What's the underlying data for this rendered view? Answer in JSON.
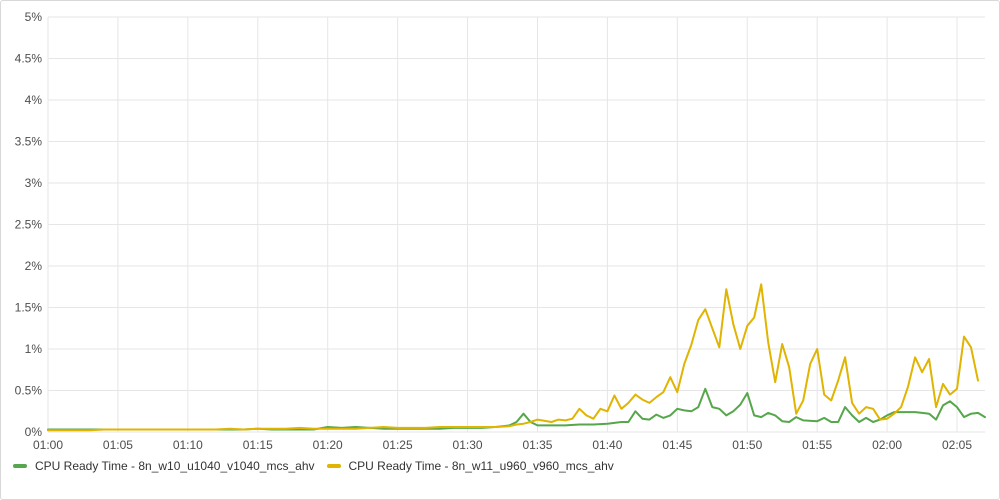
{
  "chart_data": {
    "type": "line",
    "title": "",
    "xlabel": "",
    "ylabel": "",
    "y_unit": "%",
    "ylim": [
      0,
      5
    ],
    "y_ticks": [
      "0%",
      "0.5%",
      "1%",
      "1.5%",
      "2%",
      "2.5%",
      "3%",
      "3.5%",
      "4%",
      "4.5%",
      "5%"
    ],
    "y_tick_values": [
      0,
      0.5,
      1,
      1.5,
      2,
      2.5,
      3,
      3.5,
      4,
      4.5,
      5
    ],
    "xlim": [
      "01:00",
      "02:07"
    ],
    "x_ticks": [
      "01:00",
      "01:05",
      "01:10",
      "01:15",
      "01:20",
      "01:25",
      "01:30",
      "01:35",
      "01:40",
      "01:45",
      "01:50",
      "01:55",
      "02:00",
      "02:05"
    ],
    "grid": true,
    "legend_position": "bottom-left",
    "colors": [
      "#56a64b",
      "#e0b400"
    ],
    "series": [
      {
        "name": "CPU Ready Time - 8n_w10_u1040_v1040_mcs_ahv",
        "points": [
          [
            "01:00",
            0.03
          ],
          [
            "01:01",
            0.03
          ],
          [
            "01:02",
            0.03
          ],
          [
            "01:03",
            0.03
          ],
          [
            "01:04",
            0.03
          ],
          [
            "01:05",
            0.03
          ],
          [
            "01:06",
            0.03
          ],
          [
            "01:07",
            0.03
          ],
          [
            "01:08",
            0.03
          ],
          [
            "01:09",
            0.03
          ],
          [
            "01:10",
            0.03
          ],
          [
            "01:11",
            0.03
          ],
          [
            "01:12",
            0.03
          ],
          [
            "01:13",
            0.03
          ],
          [
            "01:14",
            0.03
          ],
          [
            "01:15",
            0.04
          ],
          [
            "01:16",
            0.03
          ],
          [
            "01:17",
            0.03
          ],
          [
            "01:18",
            0.03
          ],
          [
            "01:19",
            0.03
          ],
          [
            "01:20",
            0.06
          ],
          [
            "01:21",
            0.05
          ],
          [
            "01:22",
            0.06
          ],
          [
            "01:23",
            0.05
          ],
          [
            "01:24",
            0.04
          ],
          [
            "01:25",
            0.04
          ],
          [
            "01:26",
            0.04
          ],
          [
            "01:27",
            0.04
          ],
          [
            "01:28",
            0.04
          ],
          [
            "01:29",
            0.05
          ],
          [
            "01:30",
            0.05
          ],
          [
            "01:31",
            0.05
          ],
          [
            "01:32",
            0.06
          ],
          [
            "01:33",
            0.08
          ],
          [
            "01:33:30",
            0.12
          ],
          [
            "01:34",
            0.22
          ],
          [
            "01:34:30",
            0.12
          ],
          [
            "01:35",
            0.08
          ],
          [
            "01:36",
            0.08
          ],
          [
            "01:37",
            0.08
          ],
          [
            "01:38",
            0.09
          ],
          [
            "01:39",
            0.09
          ],
          [
            "01:40",
            0.1
          ],
          [
            "01:41",
            0.12
          ],
          [
            "01:41:30",
            0.12
          ],
          [
            "01:42",
            0.25
          ],
          [
            "01:42:30",
            0.16
          ],
          [
            "01:43",
            0.15
          ],
          [
            "01:43:30",
            0.21
          ],
          [
            "01:44",
            0.17
          ],
          [
            "01:44:30",
            0.2
          ],
          [
            "01:45",
            0.28
          ],
          [
            "01:45:30",
            0.26
          ],
          [
            "01:46",
            0.25
          ],
          [
            "01:46:30",
            0.3
          ],
          [
            "01:47",
            0.52
          ],
          [
            "01:47:30",
            0.3
          ],
          [
            "01:48",
            0.28
          ],
          [
            "01:48:30",
            0.2
          ],
          [
            "01:49",
            0.25
          ],
          [
            "01:49:30",
            0.33
          ],
          [
            "01:50",
            0.47
          ],
          [
            "01:50:30",
            0.2
          ],
          [
            "01:51",
            0.18
          ],
          [
            "01:51:30",
            0.23
          ],
          [
            "01:52",
            0.2
          ],
          [
            "01:52:30",
            0.13
          ],
          [
            "01:53",
            0.12
          ],
          [
            "01:53:30",
            0.18
          ],
          [
            "01:54",
            0.14
          ],
          [
            "01:55",
            0.13
          ],
          [
            "01:55:30",
            0.17
          ],
          [
            "01:56",
            0.12
          ],
          [
            "01:56:30",
            0.12
          ],
          [
            "01:57",
            0.3
          ],
          [
            "01:57:30",
            0.2
          ],
          [
            "01:58",
            0.12
          ],
          [
            "01:58:30",
            0.17
          ],
          [
            "01:59",
            0.12
          ],
          [
            "01:59:30",
            0.15
          ],
          [
            "02:00",
            0.2
          ],
          [
            "02:00:30",
            0.24
          ],
          [
            "02:01",
            0.24
          ],
          [
            "02:02",
            0.24
          ],
          [
            "02:02:30",
            0.23
          ],
          [
            "02:03",
            0.22
          ],
          [
            "02:03:30",
            0.15
          ],
          [
            "02:04",
            0.32
          ],
          [
            "02:04:30",
            0.37
          ],
          [
            "02:05",
            0.3
          ],
          [
            "02:05:30",
            0.18
          ],
          [
            "02:06",
            0.22
          ],
          [
            "02:06:30",
            0.23
          ],
          [
            "02:07",
            0.18
          ]
        ]
      },
      {
        "name": "CPU Ready Time - 8n_w11_u960_v960_mcs_ahv",
        "points": [
          [
            "01:00",
            0.02
          ],
          [
            "01:01",
            0.02
          ],
          [
            "01:02",
            0.02
          ],
          [
            "01:03",
            0.02
          ],
          [
            "01:04",
            0.03
          ],
          [
            "01:05",
            0.03
          ],
          [
            "01:06",
            0.03
          ],
          [
            "01:07",
            0.03
          ],
          [
            "01:08",
            0.03
          ],
          [
            "01:09",
            0.03
          ],
          [
            "01:10",
            0.03
          ],
          [
            "01:11",
            0.03
          ],
          [
            "01:12",
            0.03
          ],
          [
            "01:13",
            0.04
          ],
          [
            "01:14",
            0.03
          ],
          [
            "01:15",
            0.04
          ],
          [
            "01:16",
            0.04
          ],
          [
            "01:17",
            0.04
          ],
          [
            "01:18",
            0.05
          ],
          [
            "01:19",
            0.04
          ],
          [
            "01:20",
            0.04
          ],
          [
            "01:21",
            0.04
          ],
          [
            "01:22",
            0.04
          ],
          [
            "01:23",
            0.05
          ],
          [
            "01:24",
            0.06
          ],
          [
            "01:25",
            0.05
          ],
          [
            "01:26",
            0.05
          ],
          [
            "01:27",
            0.05
          ],
          [
            "01:28",
            0.06
          ],
          [
            "01:29",
            0.06
          ],
          [
            "01:30",
            0.06
          ],
          [
            "01:31",
            0.06
          ],
          [
            "01:32",
            0.06
          ],
          [
            "01:33",
            0.07
          ],
          [
            "01:33:30",
            0.09
          ],
          [
            "01:34",
            0.1
          ],
          [
            "01:34:30",
            0.12
          ],
          [
            "01:35",
            0.15
          ],
          [
            "01:36",
            0.12
          ],
          [
            "01:36:30",
            0.15
          ],
          [
            "01:37",
            0.14
          ],
          [
            "01:37:30",
            0.16
          ],
          [
            "01:38",
            0.28
          ],
          [
            "01:38:30",
            0.2
          ],
          [
            "01:39",
            0.16
          ],
          [
            "01:39:30",
            0.28
          ],
          [
            "01:40",
            0.25
          ],
          [
            "01:40:30",
            0.44
          ],
          [
            "01:41",
            0.28
          ],
          [
            "01:41:30",
            0.35
          ],
          [
            "01:42",
            0.45
          ],
          [
            "01:42:30",
            0.39
          ],
          [
            "01:43",
            0.35
          ],
          [
            "01:43:30",
            0.42
          ],
          [
            "01:44",
            0.48
          ],
          [
            "01:44:30",
            0.66
          ],
          [
            "01:45",
            0.48
          ],
          [
            "01:45:30",
            0.82
          ],
          [
            "01:46",
            1.05
          ],
          [
            "01:46:30",
            1.35
          ],
          [
            "01:47",
            1.48
          ],
          [
            "01:47:30",
            1.25
          ],
          [
            "01:48",
            1.02
          ],
          [
            "01:48:30",
            1.72
          ],
          [
            "01:49",
            1.3
          ],
          [
            "01:49:30",
            1.0
          ],
          [
            "01:50",
            1.28
          ],
          [
            "01:50:30",
            1.38
          ],
          [
            "01:51",
            1.78
          ],
          [
            "01:51:30",
            1.08
          ],
          [
            "01:52",
            0.6
          ],
          [
            "01:52:30",
            1.06
          ],
          [
            "01:53",
            0.78
          ],
          [
            "01:53:30",
            0.22
          ],
          [
            "01:54",
            0.38
          ],
          [
            "01:54:30",
            0.82
          ],
          [
            "01:55",
            1.0
          ],
          [
            "01:55:30",
            0.45
          ],
          [
            "01:56",
            0.38
          ],
          [
            "01:56:30",
            0.62
          ],
          [
            "01:57",
            0.9
          ],
          [
            "01:57:30",
            0.35
          ],
          [
            "01:58",
            0.22
          ],
          [
            "01:58:30",
            0.3
          ],
          [
            "01:59",
            0.28
          ],
          [
            "01:59:30",
            0.15
          ],
          [
            "02:00",
            0.16
          ],
          [
            "02:00:30",
            0.22
          ],
          [
            "02:01",
            0.3
          ],
          [
            "02:01:30",
            0.55
          ],
          [
            "02:02",
            0.9
          ],
          [
            "02:02:30",
            0.72
          ],
          [
            "02:03",
            0.88
          ],
          [
            "02:03:30",
            0.3
          ],
          [
            "02:04",
            0.58
          ],
          [
            "02:04:30",
            0.45
          ],
          [
            "02:05",
            0.52
          ],
          [
            "02:05:30",
            1.15
          ],
          [
            "02:06",
            1.02
          ],
          [
            "02:06:30",
            0.62
          ]
        ]
      }
    ]
  }
}
